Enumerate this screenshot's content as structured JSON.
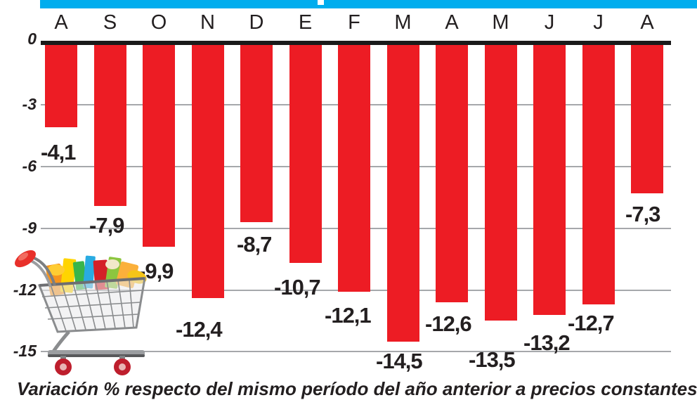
{
  "title_strip_color": "#00ADEE",
  "caption": "Variación % respecto del mismo período del año anterior a precios constantes",
  "chart_data": {
    "type": "bar",
    "title": "",
    "xlabel": "",
    "ylabel": "Variación %",
    "categories": [
      "A",
      "S",
      "O",
      "N",
      "D",
      "E",
      "F",
      "M",
      "A",
      "M",
      "J",
      "J",
      "A"
    ],
    "values": [
      -4.1,
      -7.9,
      -9.9,
      -12.4,
      -8.7,
      -10.7,
      -12.1,
      -14.5,
      -12.6,
      -13.5,
      -13.2,
      -12.7,
      -7.3
    ],
    "value_labels": [
      "-4,1",
      "-7,9",
      "-9,9",
      "-12,4",
      "-8,7",
      "-10,7",
      "-12,1",
      "-14,5",
      "-12,6",
      "-13,5",
      "-13,2",
      "-12,7",
      "-7,3"
    ],
    "y_ticks": [
      0,
      -3,
      -6,
      -9,
      -12,
      -15
    ],
    "y_tick_labels": [
      "0",
      "-3",
      "-6",
      "-9",
      "-12",
      "-15"
    ],
    "ylim": [
      -15.5,
      0
    ],
    "grid": true,
    "bar_color": "#ED1C24",
    "axis_color": "#1A1A1A",
    "gridline_color": "#A6A8AB",
    "legend": "none"
  },
  "decor": {
    "cart_image": "shopping-cart-full-of-groceries"
  }
}
